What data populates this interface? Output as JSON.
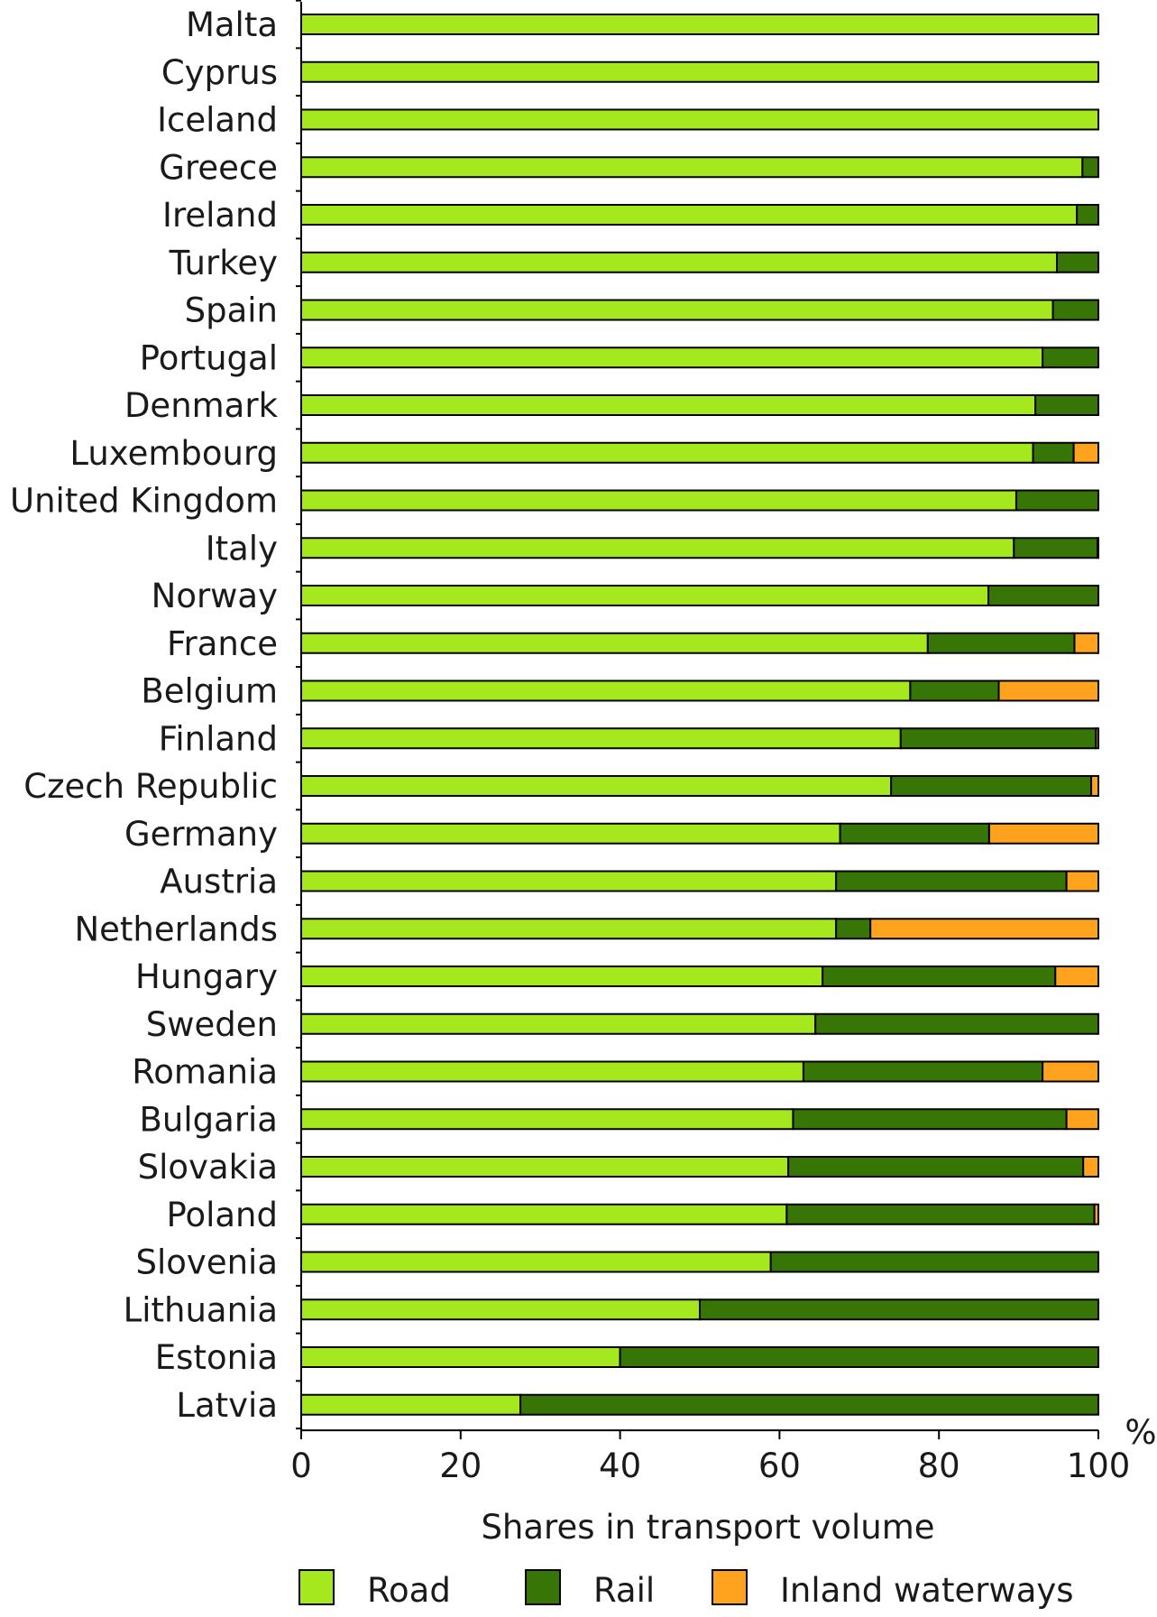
{
  "chart_data": {
    "type": "bar",
    "orientation": "horizontal",
    "stacked": true,
    "categories": [
      "Malta",
      "Cyprus",
      "Iceland",
      "Greece",
      "Ireland",
      "Turkey",
      "Spain",
      "Portugal",
      "Denmark",
      "Luxembourg",
      "United Kingdom",
      "Italy",
      "Norway",
      "France",
      "Belgium",
      "Finland",
      "Czech Republic",
      "Germany",
      "Austria",
      "Netherlands",
      "Hungary",
      "Sweden",
      "Romania",
      "Bulgaria",
      "Slovakia",
      "Poland",
      "Slovenia",
      "Lithuania",
      "Estonia",
      "Latvia"
    ],
    "series": [
      {
        "name": "Road",
        "color": "#a6e81e",
        "values": [
          100,
          100,
          100,
          98,
          97.3,
          94.8,
          94.3,
          93,
          92.1,
          91.8,
          89.7,
          89.4,
          86.2,
          78.6,
          76.4,
          75.2,
          74,
          67.6,
          67.1,
          67.1,
          65.4,
          64.5,
          63,
          61.7,
          61.1,
          60.9,
          58.9,
          50,
          40,
          27.5
        ]
      },
      {
        "name": "Rail",
        "color": "#367506",
        "values": [
          0,
          0,
          0,
          2,
          2.7,
          5.2,
          5.7,
          7,
          7.9,
          5.1,
          10.3,
          10.5,
          13.8,
          18.4,
          11.1,
          24.5,
          25.1,
          18.7,
          28.9,
          4.3,
          29.2,
          35.5,
          30,
          34.3,
          37,
          38.6,
          41.1,
          50,
          60,
          72.5
        ]
      },
      {
        "name": "Inland waterways",
        "color": "#ffa31f",
        "values": [
          0,
          0,
          0,
          0,
          0,
          0,
          0,
          0,
          0,
          3.1,
          0,
          0.1,
          0,
          3,
          12.5,
          0.3,
          0.9,
          13.7,
          4,
          28.6,
          5.4,
          0,
          7,
          4,
          1.9,
          0.5,
          0,
          0,
          0,
          0
        ]
      }
    ],
    "xlim": [
      0,
      100
    ],
    "xticks": [
      "0",
      "20",
      "40",
      "60",
      "80",
      "100"
    ],
    "xunit": "%",
    "xlabel": "Shares in transport volume",
    "legend": [
      "Road",
      "Rail",
      "Inland waterways"
    ],
    "legend_position": "bottom",
    "grid": false
  }
}
